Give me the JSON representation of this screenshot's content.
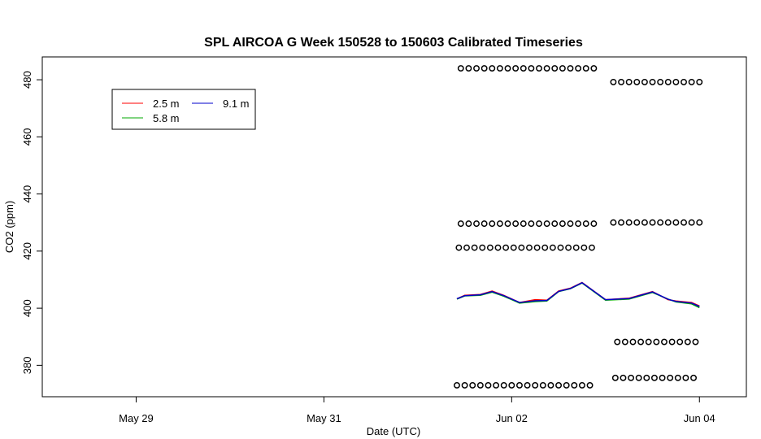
{
  "chart_data": {
    "type": "line",
    "title": "SPL AIRCOA G  Week 150528 to 150603  Calibrated Timeseries",
    "xlabel": "Date (UTC)",
    "ylabel": "CO2 (ppm)",
    "xlim": [
      "2015-05-28T00:00",
      "2015-06-04T12:00"
    ],
    "ylim": [
      369,
      488
    ],
    "x_ticks": [
      {
        "at": "2015-05-29T00:00",
        "label": "May 29"
      },
      {
        "at": "2015-05-31T00:00",
        "label": "May 31"
      },
      {
        "at": "2015-06-02T00:00",
        "label": "Jun 02"
      },
      {
        "at": "2015-06-04T00:00",
        "label": "Jun 04"
      }
    ],
    "y_ticks": [
      380,
      400,
      420,
      440,
      460,
      480
    ],
    "grid": false,
    "legend": {
      "placement": "top-left",
      "entries": [
        {
          "label": "2.5 m",
          "color": "#ff0000"
        },
        {
          "label": "5.8 m",
          "color": "#00aa00"
        },
        {
          "label": "9.1 m",
          "color": "#0000cc"
        }
      ]
    },
    "series": [
      {
        "name": "2.5 m",
        "color": "#ff0000",
        "x": [
          "2015-06-01T10:00",
          "2015-06-01T12:00",
          "2015-06-01T16:00",
          "2015-06-01T19:00",
          "2015-06-01T22:00",
          "2015-06-02T02:00",
          "2015-06-02T06:00",
          "2015-06-02T09:00",
          "2015-06-02T12:00",
          "2015-06-02T15:00",
          "2015-06-02T18:00",
          "2015-06-03T00:00",
          "2015-06-03T06:00",
          "2015-06-03T12:00",
          "2015-06-03T16:00",
          "2015-06-03T18:00",
          "2015-06-03T22:00",
          "2015-06-04T00:00"
        ],
        "y": [
          403.3,
          404.5,
          404.8,
          406.0,
          404.5,
          402.0,
          403.0,
          402.8,
          406.0,
          407.0,
          409.0,
          403.0,
          403.5,
          405.8,
          403.0,
          402.5,
          402.0,
          400.8
        ]
      },
      {
        "name": "5.8 m",
        "color": "#00aa00",
        "x": [
          "2015-06-01T10:00",
          "2015-06-01T12:00",
          "2015-06-01T16:00",
          "2015-06-01T19:00",
          "2015-06-01T22:00",
          "2015-06-02T02:00",
          "2015-06-02T06:00",
          "2015-06-02T09:00",
          "2015-06-02T12:00",
          "2015-06-02T15:00",
          "2015-06-02T18:00",
          "2015-06-03T00:00",
          "2015-06-03T06:00",
          "2015-06-03T12:00",
          "2015-06-03T16:00",
          "2015-06-03T18:00",
          "2015-06-03T22:00",
          "2015-06-04T00:00"
        ],
        "y": [
          403.2,
          404.3,
          404.5,
          405.6,
          404.2,
          401.8,
          402.3,
          402.5,
          405.8,
          406.8,
          408.8,
          402.8,
          403.2,
          405.5,
          403.2,
          402.2,
          401.5,
          400.2
        ]
      },
      {
        "name": "9.1 m",
        "color": "#0000cc",
        "x": [
          "2015-06-01T10:00",
          "2015-06-01T12:00",
          "2015-06-01T16:00",
          "2015-06-01T19:00",
          "2015-06-01T22:00",
          "2015-06-02T02:00",
          "2015-06-02T06:00",
          "2015-06-02T09:00",
          "2015-06-02T12:00",
          "2015-06-02T15:00",
          "2015-06-02T18:00",
          "2015-06-03T00:00",
          "2015-06-03T06:00",
          "2015-06-03T12:00",
          "2015-06-03T16:00",
          "2015-06-03T18:00",
          "2015-06-03T22:00",
          "2015-06-04T00:00"
        ],
        "y": [
          403.3,
          404.4,
          404.7,
          405.8,
          404.4,
          402.0,
          402.6,
          402.7,
          405.9,
          406.9,
          408.9,
          403.0,
          403.4,
          405.7,
          403.1,
          402.4,
          401.8,
          400.6
        ]
      }
    ],
    "calibration_markers": [
      {
        "y": 484.0,
        "x": [
          "2015-06-01T11:00",
          "2015-06-01T13:00",
          "2015-06-01T15:00",
          "2015-06-01T17:00",
          "2015-06-01T19:00",
          "2015-06-01T21:00",
          "2015-06-01T23:00",
          "2015-06-02T01:00",
          "2015-06-02T03:00",
          "2015-06-02T05:00",
          "2015-06-02T07:00",
          "2015-06-02T09:00",
          "2015-06-02T11:00",
          "2015-06-02T13:00",
          "2015-06-02T15:00",
          "2015-06-02T17:00",
          "2015-06-02T19:00",
          "2015-06-02T21:00"
        ]
      },
      {
        "y": 429.6,
        "x": [
          "2015-06-01T11:00",
          "2015-06-01T13:00",
          "2015-06-01T15:00",
          "2015-06-01T17:00",
          "2015-06-01T19:00",
          "2015-06-01T21:00",
          "2015-06-01T23:00",
          "2015-06-02T01:00",
          "2015-06-02T03:00",
          "2015-06-02T05:00",
          "2015-06-02T07:00",
          "2015-06-02T09:00",
          "2015-06-02T11:00",
          "2015-06-02T13:00",
          "2015-06-02T15:00",
          "2015-06-02T17:00",
          "2015-06-02T19:00",
          "2015-06-02T21:00"
        ]
      },
      {
        "y": 421.2,
        "x": [
          "2015-06-01T10:30",
          "2015-06-01T12:30",
          "2015-06-01T14:30",
          "2015-06-01T16:30",
          "2015-06-01T18:30",
          "2015-06-01T20:30",
          "2015-06-01T22:30",
          "2015-06-02T00:30",
          "2015-06-02T02:30",
          "2015-06-02T04:30",
          "2015-06-02T06:30",
          "2015-06-02T08:30",
          "2015-06-02T10:30",
          "2015-06-02T12:30",
          "2015-06-02T14:30",
          "2015-06-02T16:30",
          "2015-06-02T18:30",
          "2015-06-02T20:30"
        ]
      },
      {
        "y": 373.0,
        "x": [
          "2015-06-01T10:00",
          "2015-06-01T12:00",
          "2015-06-01T14:00",
          "2015-06-01T16:00",
          "2015-06-01T18:00",
          "2015-06-01T20:00",
          "2015-06-01T22:00",
          "2015-06-02T00:00",
          "2015-06-02T02:00",
          "2015-06-02T04:00",
          "2015-06-02T06:00",
          "2015-06-02T08:00",
          "2015-06-02T10:00",
          "2015-06-02T12:00",
          "2015-06-02T14:00",
          "2015-06-02T16:00",
          "2015-06-02T18:00",
          "2015-06-02T20:00"
        ]
      },
      {
        "y": 479.2,
        "x": [
          "2015-06-03T02:00",
          "2015-06-03T04:00",
          "2015-06-03T06:00",
          "2015-06-03T08:00",
          "2015-06-03T10:00",
          "2015-06-03T12:00",
          "2015-06-03T14:00",
          "2015-06-03T16:00",
          "2015-06-03T18:00",
          "2015-06-03T20:00",
          "2015-06-03T22:00",
          "2015-06-04T00:00"
        ]
      },
      {
        "y": 430.0,
        "x": [
          "2015-06-03T02:00",
          "2015-06-03T04:00",
          "2015-06-03T06:00",
          "2015-06-03T08:00",
          "2015-06-03T10:00",
          "2015-06-03T12:00",
          "2015-06-03T14:00",
          "2015-06-03T16:00",
          "2015-06-03T18:00",
          "2015-06-03T20:00",
          "2015-06-03T22:00",
          "2015-06-04T00:00"
        ]
      },
      {
        "y": 388.2,
        "x": [
          "2015-06-03T03:00",
          "2015-06-03T05:00",
          "2015-06-03T07:00",
          "2015-06-03T09:00",
          "2015-06-03T11:00",
          "2015-06-03T13:00",
          "2015-06-03T15:00",
          "2015-06-03T17:00",
          "2015-06-03T19:00",
          "2015-06-03T21:00",
          "2015-06-03T23:00"
        ]
      },
      {
        "y": 375.6,
        "x": [
          "2015-06-03T02:30",
          "2015-06-03T04:30",
          "2015-06-03T06:30",
          "2015-06-03T08:30",
          "2015-06-03T10:30",
          "2015-06-03T12:30",
          "2015-06-03T14:30",
          "2015-06-03T16:30",
          "2015-06-03T18:30",
          "2015-06-03T20:30",
          "2015-06-03T22:30"
        ]
      }
    ]
  }
}
